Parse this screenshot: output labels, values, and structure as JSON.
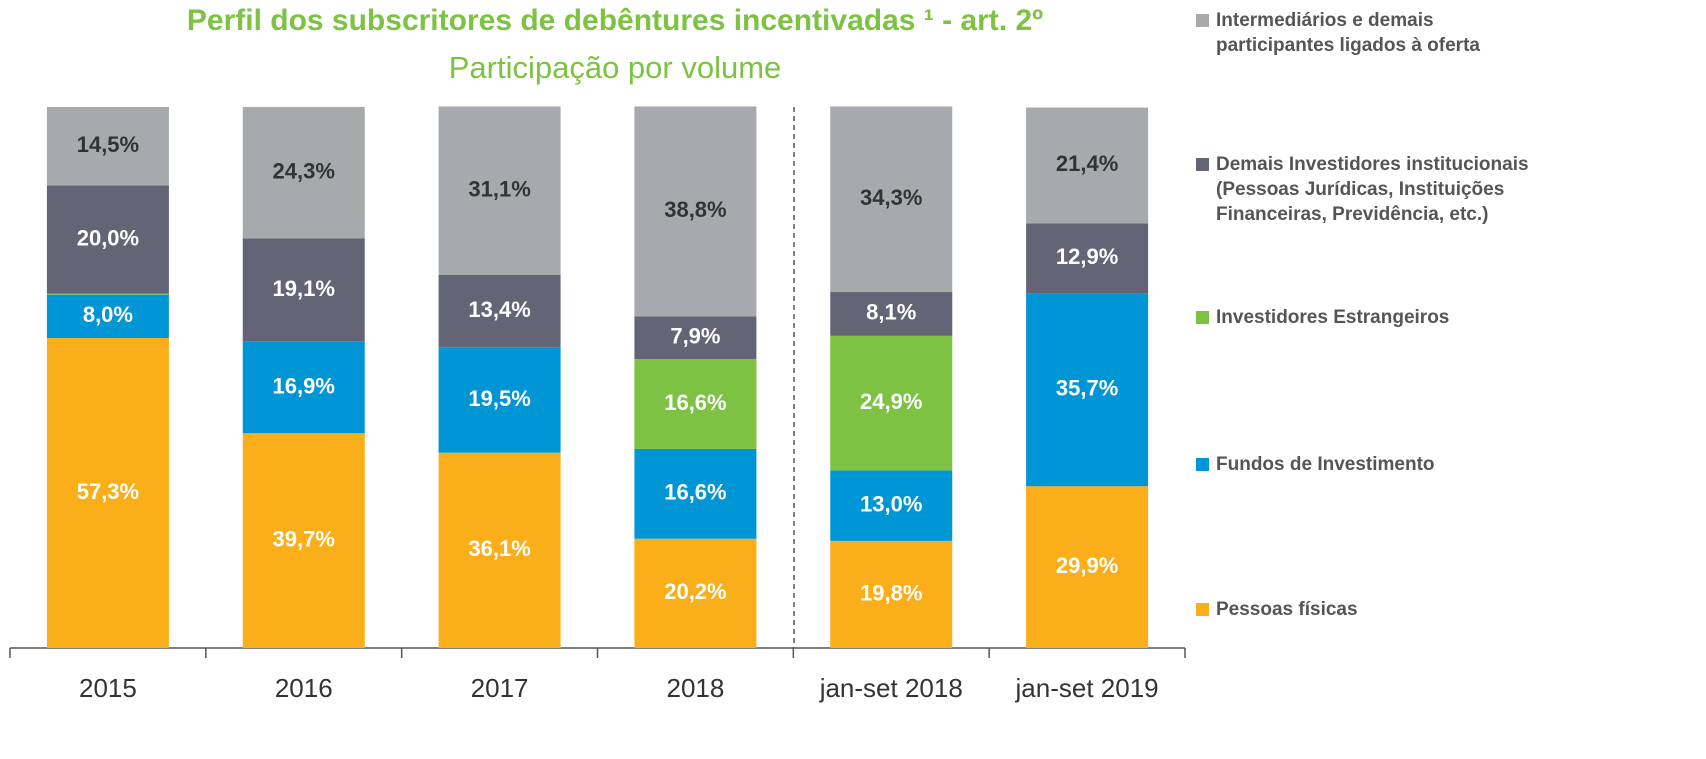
{
  "chart_data": {
    "type": "stacked_bar",
    "title": "Perfil dos subscritores de debêntures incentivadas ¹ - art. 2º",
    "subtitle": "Participação por volume",
    "categories": [
      "2015",
      "2016",
      "2017",
      "2018",
      "jan-set 2018",
      "jan-set 2019"
    ],
    "ylim": [
      0,
      100
    ],
    "series": [
      {
        "name": "Pessoas físicas",
        "color": "#F9AE1A",
        "values": [
          57.3,
          39.7,
          36.1,
          20.2,
          19.8,
          29.9
        ],
        "value_labels": [
          "57,3%",
          "39,7%",
          "36,1%",
          "20,2%",
          "19,8%",
          "29,9%"
        ]
      },
      {
        "name": "Fundos de Investimento",
        "color": "#0096D6",
        "values": [
          8.0,
          16.9,
          19.5,
          16.6,
          13.0,
          35.7
        ],
        "value_labels": [
          "8,0%",
          "16,9%",
          "19,5%",
          "16,6%",
          "13,0%",
          "35,7%"
        ]
      },
      {
        "name": "Investidores Estrangeiros",
        "color": "#7DC242",
        "values": [
          0.2,
          0.01,
          0,
          16.6,
          24.9,
          0
        ],
        "value_labels": [
          "0,2%",
          "0,01%",
          null,
          "16,6%",
          "24,9%",
          null
        ]
      },
      {
        "name": "Demais Investidores institucionais (Pessoas Jurídicas, Instituições Financeiras, Previdência, etc.)",
        "color": "#636577",
        "values": [
          20.0,
          19.1,
          13.4,
          7.9,
          8.1,
          12.9
        ],
        "value_labels": [
          "20,0%",
          "19,1%",
          "13,4%",
          "7,9%",
          "8,1%",
          "12,9%"
        ]
      },
      {
        "name": "Intermediários e demais participantes ligados à oferta",
        "color": "#A7A9AC",
        "values": [
          14.5,
          24.3,
          31.1,
          38.8,
          34.3,
          21.4
        ],
        "value_labels": [
          "14,5%",
          "24,3%",
          "31,1%",
          "38,8%",
          "34,3%",
          "21,4%"
        ]
      }
    ]
  }
}
